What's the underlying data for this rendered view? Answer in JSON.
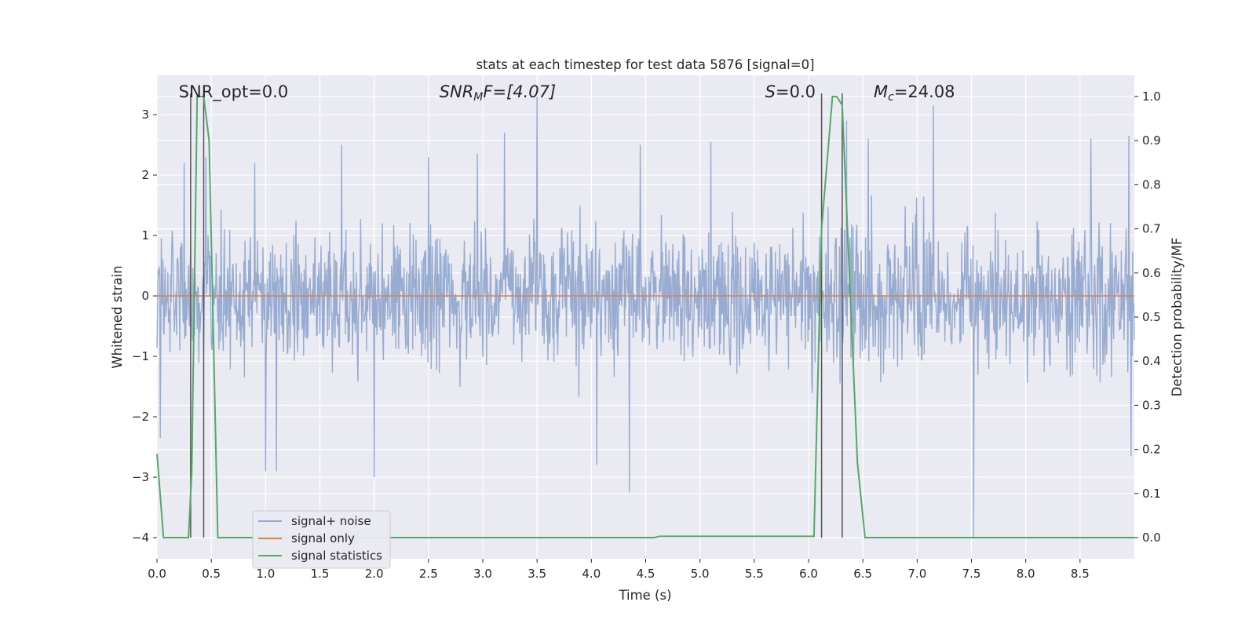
{
  "chart_data": {
    "type": "line",
    "title": "stats at each timestep for test data 5876 [signal=0]",
    "xlabel": "Time (s)",
    "ylabel": "Whitened strain",
    "y2label": "Detection probability/MF",
    "xlim": [
      0.0,
      9.0
    ],
    "ylim": [
      -4.35,
      3.65
    ],
    "y2lim": [
      -0.048,
      1.048
    ],
    "xticks": [
      0.0,
      0.5,
      1.0,
      1.5,
      2.0,
      2.5,
      3.0,
      3.5,
      4.0,
      4.5,
      5.0,
      5.5,
      6.0,
      6.5,
      7.0,
      7.5,
      8.0,
      8.5
    ],
    "xtick_labels": [
      "0.0",
      "0.5",
      "1.0",
      "1.5",
      "2.0",
      "2.5",
      "3.0",
      "3.5",
      "4.0",
      "4.5",
      "5.0",
      "5.5",
      "6.0",
      "6.5",
      "7.0",
      "7.5",
      "8.0",
      "8.5"
    ],
    "yticks": [
      3,
      2,
      1,
      0,
      -1,
      -2,
      -3,
      -4
    ],
    "ytick_labels": [
      "3",
      "2",
      "1",
      "0",
      "−1",
      "−2",
      "−3",
      "−4"
    ],
    "y2ticks": [
      1.0,
      0.9,
      0.8,
      0.7,
      0.6,
      0.5,
      0.4,
      0.3,
      0.2,
      0.1,
      0.0
    ],
    "y2tick_labels": [
      "1.0",
      "0.9",
      "0.8",
      "0.7",
      "0.6",
      "0.5",
      "0.4",
      "0.3",
      "0.2",
      "0.1",
      "0.0"
    ],
    "grid": true,
    "legend_position": "lower-left",
    "series": [
      {
        "name": "signal+ noise",
        "color": "#98abd1",
        "description_values": "dense whitened noise trace, mostly within ±1.5 with spikes up to about 3.3 and down to about -4.0",
        "noise_amplitude": 1.5,
        "spikes": [
          [
            0.25,
            2.2
          ],
          [
            0.45,
            2.3
          ],
          [
            0.9,
            2.2
          ],
          [
            1.0,
            -2.9
          ],
          [
            1.1,
            -2.9
          ],
          [
            1.7,
            2.5
          ],
          [
            2.0,
            -3.0
          ],
          [
            2.5,
            2.3
          ],
          [
            2.95,
            2.35
          ],
          [
            3.2,
            2.7
          ],
          [
            3.5,
            3.3
          ],
          [
            4.05,
            -2.8
          ],
          [
            4.35,
            -3.25
          ],
          [
            4.45,
            2.5
          ],
          [
            5.1,
            2.55
          ],
          [
            6.35,
            2.9
          ],
          [
            6.55,
            2.6
          ],
          [
            7.15,
            3.15
          ],
          [
            7.52,
            -4.0
          ],
          [
            8.6,
            2.6
          ],
          [
            8.95,
            2.65
          ],
          [
            8.97,
            -2.65
          ],
          [
            0.03,
            -2.35
          ]
        ]
      },
      {
        "name": "signal only",
        "color": "#dd8452",
        "x": [
          0.0,
          9.0
        ],
        "y": [
          0.0,
          0.0
        ]
      },
      {
        "name": "signal statistics",
        "color": "#55a868",
        "axis": "right",
        "x": [
          0.0,
          0.06,
          0.29,
          0.32,
          0.37,
          0.43,
          0.48,
          0.56,
          4.58,
          4.63,
          6.05,
          6.12,
          6.22,
          6.26,
          6.31,
          6.45,
          6.52,
          9.0
        ],
        "y": [
          0.19,
          0.0,
          0.0,
          0.15,
          1.0,
          1.0,
          0.9,
          0.0,
          0.0,
          0.003,
          0.003,
          0.7,
          1.0,
          1.0,
          0.98,
          0.17,
          0.0,
          0.0
        ]
      }
    ],
    "vlines": [
      0.31,
      0.43,
      6.12,
      6.31
    ],
    "vline_color": "#555555",
    "annotations": [
      {
        "text": "SNR_opt=0.0",
        "x": 0.2
      },
      {
        "text": "SNR",
        "sub": "M",
        "suffix": "F=[4.07]",
        "italic": true,
        "x": 2.6
      },
      {
        "text": "S",
        "suffix": "=0.0",
        "italic": true,
        "x": 5.6
      },
      {
        "text": "M",
        "sub": "c",
        "suffix": "=24.08",
        "italic": true,
        "x": 6.6
      }
    ],
    "colors": {
      "plot_background": "#eaeaf2",
      "grid": "#ffffff",
      "text": "#262626"
    }
  }
}
